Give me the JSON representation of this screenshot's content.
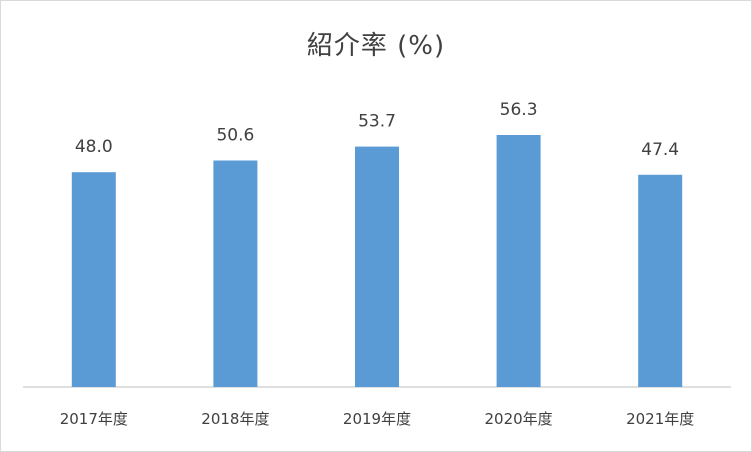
{
  "chart_data": {
    "type": "bar",
    "title": "紹介率 (%)",
    "categories": [
      "2017年度",
      "2018年度",
      "2019年度",
      "2020年度",
      "2021年度"
    ],
    "values": [
      48.0,
      50.6,
      53.7,
      56.3,
      47.4
    ],
    "value_labels": [
      "48.0",
      "50.6",
      "53.7",
      "56.3",
      "47.4"
    ],
    "xlabel": "",
    "ylabel": "",
    "ylim": [
      0,
      60
    ],
    "grid": false,
    "legend": "none",
    "bar_color": "#5b9bd5",
    "axis_color": "#bfbfbf",
    "text_color": "#404040"
  }
}
